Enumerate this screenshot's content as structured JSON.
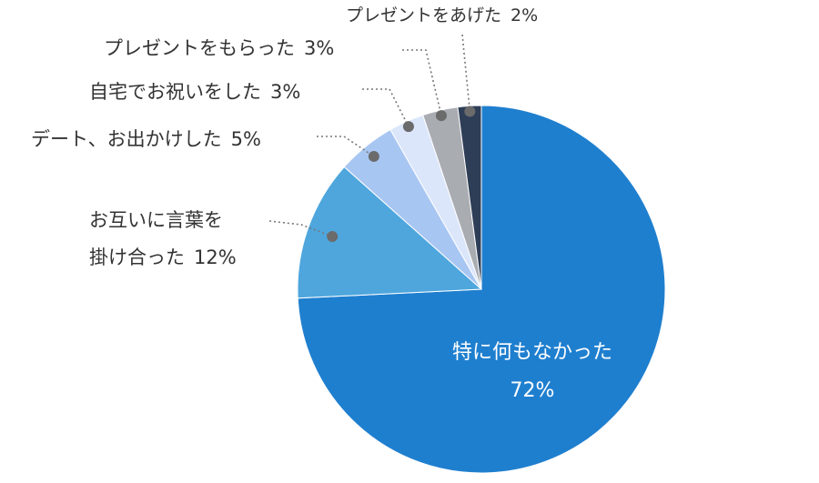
{
  "chart_data": {
    "type": "pie",
    "title": "",
    "start": "12 o'clock",
    "direction": "clockwise",
    "legend": "none",
    "slices": [
      {
        "label": "特に何もなかった",
        "value": 72,
        "value_label": "72%",
        "color": "#1f7fcf",
        "label_position": "inside"
      },
      {
        "label_lines": [
          "お互いに言葉を",
          "掛け合った"
        ],
        "value": 12,
        "value_label": "12%",
        "color": "#4ea6dd",
        "label_position": "outside"
      },
      {
        "label": "デート、お出かけした",
        "value": 5,
        "value_label": "5%",
        "color": "#a8c6f2",
        "label_position": "outside"
      },
      {
        "label": "自宅でお祝いをした",
        "value": 3,
        "value_label": "3%",
        "color": "#dbe6fb",
        "label_position": "outside"
      },
      {
        "label": "プレゼントをもらった",
        "value": 3,
        "value_label": "3%",
        "color": "#a9acb1",
        "label_position": "outside"
      },
      {
        "label": "プレゼントをあげた",
        "value": 2,
        "value_label": "2%",
        "color": "#2f3e57",
        "label_position": "outside"
      }
    ]
  },
  "colors": {
    "leader_line": "#777777",
    "leader_dot": "#6b6b6b",
    "outside_text": "#333333",
    "inside_text": "#ffffff"
  }
}
